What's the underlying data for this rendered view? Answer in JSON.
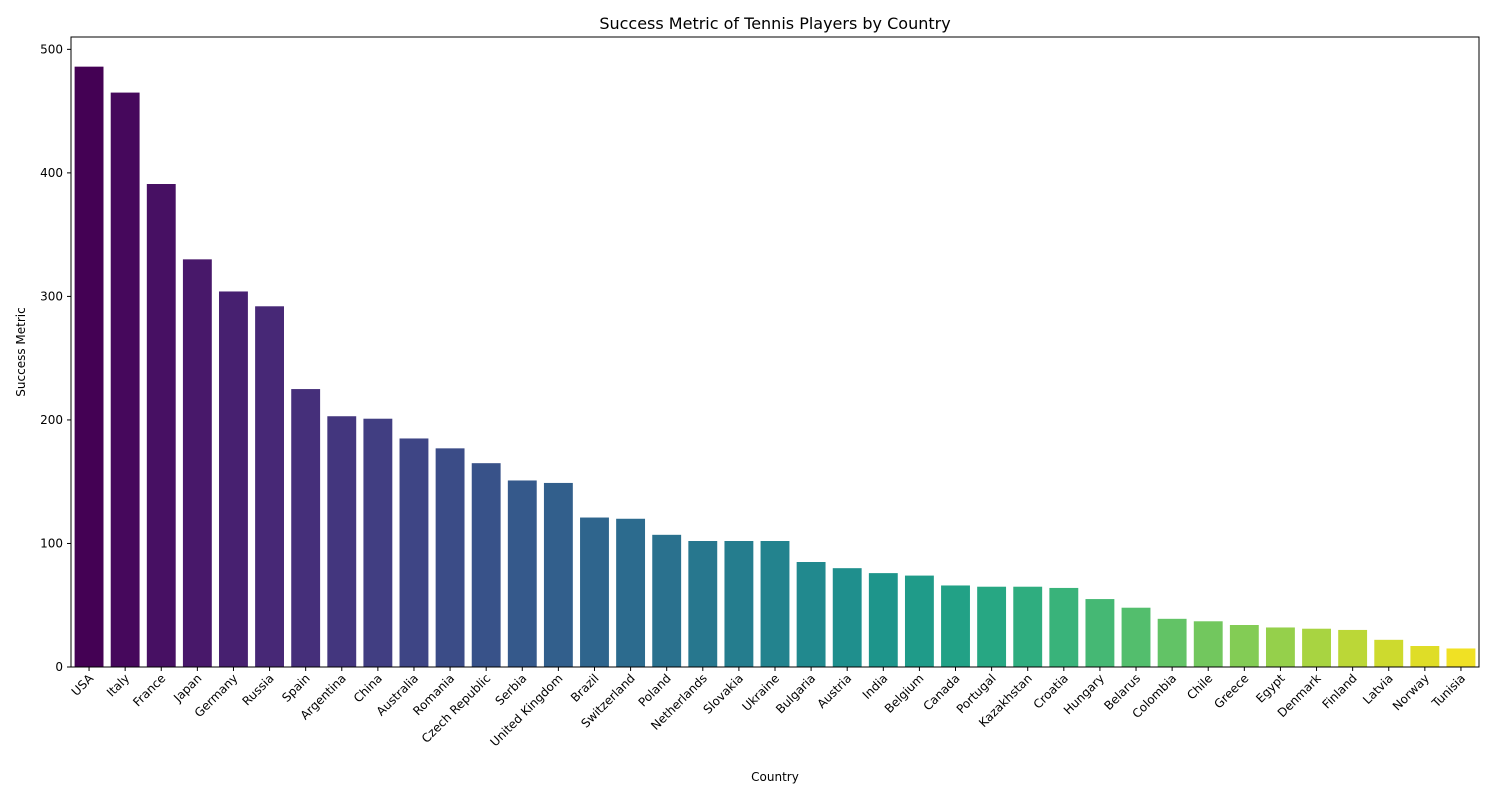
{
  "chart_data": {
    "type": "bar",
    "title": "Success Metric of Tennis Players by Country",
    "xlabel": "Country",
    "ylabel": "Success Metric",
    "ylim": [
      0,
      510
    ],
    "yticks": [
      0,
      100,
      200,
      300,
      400,
      500
    ],
    "grid": false,
    "legend": "none",
    "colormap": "viridis",
    "categories": [
      "USA",
      "Italy",
      "France",
      "Japan",
      "Germany",
      "Russia",
      "Spain",
      "Argentina",
      "China",
      "Australia",
      "Romania",
      "Czech Republic",
      "Serbia",
      "United Kingdom",
      "Brazil",
      "Switzerland",
      "Poland",
      "Netherlands",
      "Slovakia",
      "Ukraine",
      "Bulgaria",
      "Austria",
      "India",
      "Belgium",
      "Canada",
      "Portugal",
      "Kazakhstan",
      "Croatia",
      "Hungary",
      "Belarus",
      "Colombia",
      "Chile",
      "Greece",
      "Egypt",
      "Denmark",
      "Finland",
      "Latvia",
      "Norway",
      "Tunisia"
    ],
    "values": [
      486,
      465,
      391,
      330,
      304,
      292,
      225,
      203,
      201,
      185,
      177,
      165,
      151,
      149,
      121,
      120,
      107,
      102,
      102,
      102,
      85,
      80,
      76,
      74,
      66,
      65,
      65,
      64,
      55,
      48,
      39,
      37,
      34,
      32,
      31,
      30,
      22,
      17,
      15
    ],
    "colors": [
      "#440154",
      "#46085c",
      "#471063",
      "#48186a",
      "#472070",
      "#472876",
      "#452f7a",
      "#43367e",
      "#413e82",
      "#3e4585",
      "#3b4c87",
      "#385289",
      "#35598b",
      "#325f8c",
      "#2f658d",
      "#2c6b8e",
      "#2a718e",
      "#27778e",
      "#257d8e",
      "#23838e",
      "#21898e",
      "#1f8f8d",
      "#1e958b",
      "#1f9b89",
      "#22a186",
      "#27a783",
      "#2fad7f",
      "#39b37a",
      "#45b874",
      "#53be6d",
      "#62c366",
      "#72c75e",
      "#83cc55",
      "#95d04b",
      "#a8d441",
      "#bbd737",
      "#cdda2e",
      "#dfdd27",
      "#f0e124"
    ]
  }
}
